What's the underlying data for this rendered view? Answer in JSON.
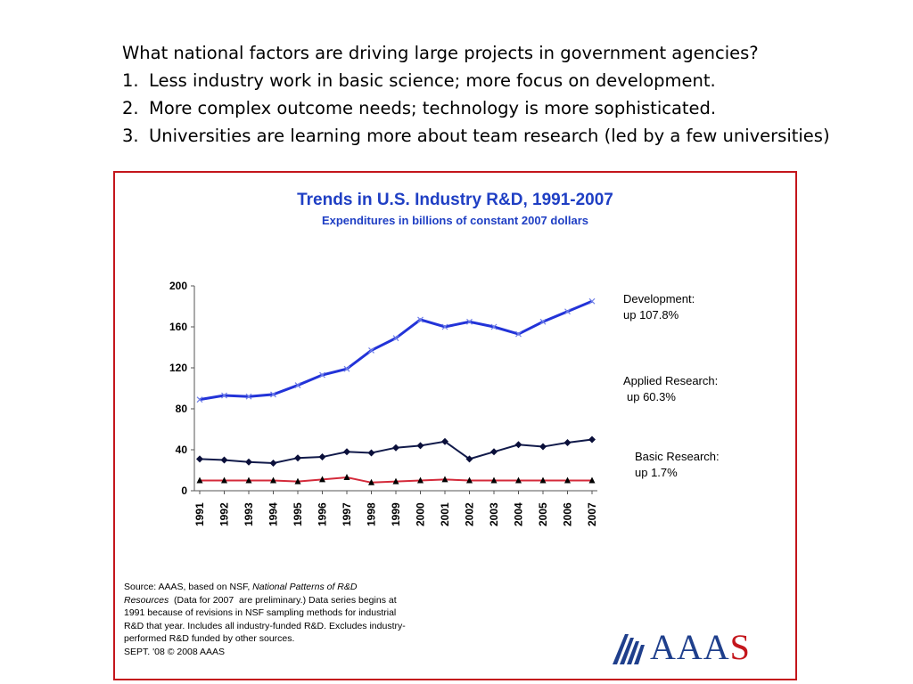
{
  "slide": {
    "heading": "What national factors are driving large projects in government agencies?",
    "points": [
      {
        "num": "1.",
        "text": "Less industry work in basic science; more focus on development."
      },
      {
        "num": "2.",
        "text": "More complex outcome needs; technology is more sophisticated."
      },
      {
        "num": "3.",
        "text": "Universities are learning more about team research (led by a few universities)"
      }
    ]
  },
  "chart_data": {
    "type": "line",
    "title": "Trends in U.S. Industry R&D, 1991-2007",
    "subtitle": "Expenditures in billions of constant 2007 dollars",
    "categories": [
      "1991",
      "1992",
      "1993",
      "1994",
      "1995",
      "1996",
      "1997",
      "1998",
      "1999",
      "2000",
      "2001",
      "2002",
      "2003",
      "2004",
      "2005",
      "2006",
      "2007"
    ],
    "ylim": [
      0,
      200
    ],
    "yticks": [
      "0",
      "40",
      "80",
      "120",
      "160",
      "200"
    ],
    "series": [
      {
        "name": "Development",
        "label_line1": "Development:",
        "label_line2": "up 107.8%",
        "color": "#2233d8",
        "marker": "x",
        "values": [
          89,
          93,
          92,
          94,
          103,
          113,
          119,
          137,
          149,
          167,
          160,
          165,
          160,
          153,
          165,
          175,
          185
        ]
      },
      {
        "name": "Applied Research",
        "label_line1": "Applied Research:",
        "label_line2": "up 60.3%",
        "color": "#111a4a",
        "marker": "diamond",
        "values": [
          31,
          30,
          28,
          27,
          32,
          33,
          38,
          37,
          42,
          44,
          48,
          31,
          38,
          45,
          43,
          47,
          50
        ]
      },
      {
        "name": "Basic Research",
        "label_line1": "Basic Research:",
        "label_line2": "up 1.7%",
        "color": "#d42a3a",
        "marker": "triangle",
        "values": [
          10,
          10,
          10,
          10,
          9,
          11,
          13,
          8,
          9,
          10,
          11,
          10,
          10,
          10,
          10,
          10,
          10
        ]
      }
    ],
    "grid": false,
    "legend": "right, inline labels"
  },
  "source": {
    "line1_a": "Source: AAAS, based on NSF, ",
    "line1_b": "National Patterns of R&D",
    "line2_a": "Resources",
    "line2_b": "  (Data for 2007  are preliminary.) Data series begins at",
    "line3": "1991 because of revisions in NSF sampling methods for industrial",
    "line4": "R&D that year. Includes all industry-funded R&D. Excludes industry-",
    "line5": "performed R&D funded by other sources.",
    "line6": "SEPT. '08 © 2008 AAAS"
  },
  "logo": {
    "text_main": "AAA",
    "text_accent": "S"
  }
}
